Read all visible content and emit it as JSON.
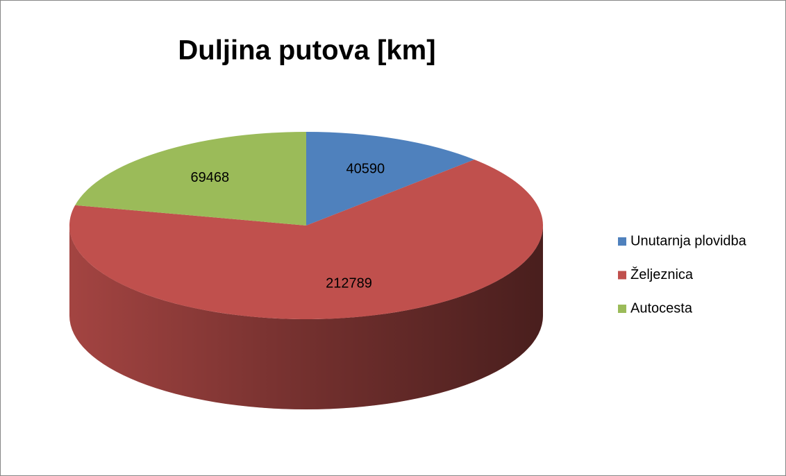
{
  "chart_data": {
    "type": "pie",
    "title": "Duljina putova [km]",
    "categories": [
      "Unutarnja plovidba",
      "Željeznica",
      "Autocesta"
    ],
    "values": [
      40590,
      212789,
      69468
    ],
    "colors": [
      "#4f81bd",
      "#c0504d",
      "#9bbb59"
    ],
    "legend": "right"
  }
}
